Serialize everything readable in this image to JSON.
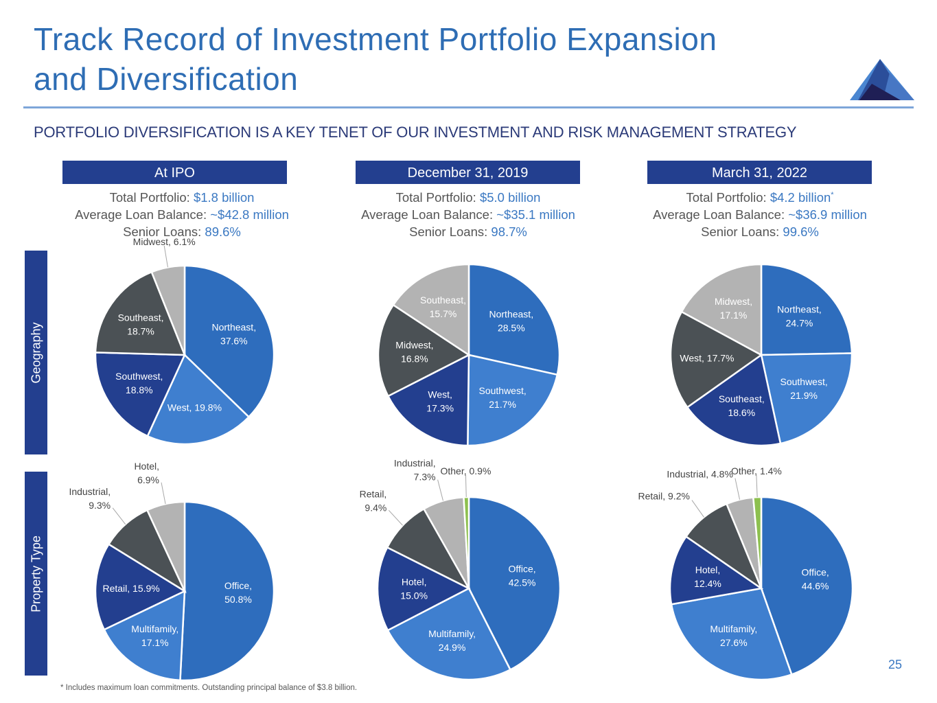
{
  "header": {
    "title_line1": "Track Record of Investment Portfolio Expansion",
    "title_line2": "and Diversification",
    "subtitle": "PORTFOLIO DIVERSIFICATION IS A KEY TENET OF OUR INVESTMENT AND RISK MANAGEMENT STRATEGY",
    "logo_icon": "mountain-logo-icon"
  },
  "columns": [
    {
      "heading": "At IPO",
      "total_label": "Total Portfolio: ",
      "total_value": "$1.8 billion",
      "total_note": "",
      "avg_label": "Average Loan Balance: ",
      "avg_value": "~$42.8 million",
      "senior_label": "Senior Loans: ",
      "senior_value": "89.6%"
    },
    {
      "heading": "December 31, 2019",
      "total_label": "Total Portfolio: ",
      "total_value": "$5.0 billion",
      "total_note": "",
      "avg_label": "Average Loan Balance: ",
      "avg_value": "~$35.1 million",
      "senior_label": "Senior Loans: ",
      "senior_value": "98.7%"
    },
    {
      "heading": "March 31, 2022",
      "total_label": "Total Portfolio: ",
      "total_value": "$4.2 billion",
      "total_note": "*",
      "avg_label": "Average Loan Balance: ",
      "avg_value": "~$36.9 million",
      "senior_label": "Senior Loans: ",
      "senior_value": "99.6%"
    }
  ],
  "rows": {
    "geography": "Geography",
    "property_type": "Property Type"
  },
  "colors": {
    "header_bar": "#233f8f",
    "accent_text": "#3a78c2",
    "title": "#2e6db4",
    "slice_blue": "#2e6dbd",
    "slice_light_blue": "#3f7fcf",
    "slice_navy": "#233f8f",
    "slice_dark_gray": "#4b5155",
    "slice_light_gray": "#b3b3b3",
    "slice_green": "#8dc04f"
  },
  "chart_data": [
    {
      "type": "pie",
      "title": "Geography — At IPO",
      "categories": [
        "Northeast",
        "West",
        "Southwest",
        "Southeast",
        "Midwest"
      ],
      "values": [
        37.6,
        19.8,
        18.8,
        18.7,
        6.1
      ],
      "colors": [
        "#2e6dbd",
        "#3f7fcf",
        "#233f8f",
        "#4b5155",
        "#b3b3b3"
      ],
      "labels": [
        "Northeast,|37.6%",
        "West, 19.8%",
        "Southwest,|18.8%",
        "Southeast,|18.7%",
        "Midwest, 6.1%"
      ],
      "label_outside": [
        false,
        false,
        false,
        false,
        true
      ],
      "unit": "%"
    },
    {
      "type": "pie",
      "title": "Geography — December 31, 2019",
      "categories": [
        "Northeast",
        "Southwest",
        "West",
        "Midwest",
        "Southeast"
      ],
      "values": [
        28.5,
        21.7,
        17.3,
        16.8,
        15.7
      ],
      "colors": [
        "#2e6dbd",
        "#3f7fcf",
        "#233f8f",
        "#4b5155",
        "#b3b3b3"
      ],
      "labels": [
        "Northeast,|28.5%",
        "Southwest,|21.7%",
        "West,|17.3%",
        "Midwest,|16.8%",
        "Southeast,|15.7%"
      ],
      "label_outside": [
        false,
        false,
        false,
        false,
        false
      ],
      "unit": "%"
    },
    {
      "type": "pie",
      "title": "Geography — March 31, 2022",
      "categories": [
        "Northeast",
        "Southwest",
        "Southeast",
        "West",
        "Midwest"
      ],
      "values": [
        24.7,
        21.9,
        18.6,
        17.7,
        17.1
      ],
      "colors": [
        "#2e6dbd",
        "#3f7fcf",
        "#233f8f",
        "#4b5155",
        "#b3b3b3"
      ],
      "labels": [
        "Northeast,|24.7%",
        "Southwest,|21.9%",
        "Southeast,|18.6%",
        "West, 17.7%",
        "Midwest,|17.1%"
      ],
      "label_outside": [
        false,
        false,
        false,
        false,
        false
      ],
      "unit": "%"
    },
    {
      "type": "pie",
      "title": "Property Type — At IPO",
      "categories": [
        "Office",
        "Multifamily",
        "Retail",
        "Industrial",
        "Hotel"
      ],
      "values": [
        50.8,
        17.1,
        15.9,
        9.3,
        6.9
      ],
      "colors": [
        "#2e6dbd",
        "#3f7fcf",
        "#233f8f",
        "#4b5155",
        "#b3b3b3"
      ],
      "labels": [
        "Office,|50.8%",
        "Multifamily,|17.1%",
        "Retail, 15.9%",
        "Industrial,|9.3%",
        "Hotel,|6.9%"
      ],
      "label_outside": [
        false,
        false,
        false,
        true,
        true
      ],
      "unit": "%"
    },
    {
      "type": "pie",
      "title": "Property Type — December 31, 2019",
      "categories": [
        "Office",
        "Multifamily",
        "Hotel",
        "Retail",
        "Industrial",
        "Other"
      ],
      "values": [
        42.5,
        24.9,
        15.0,
        9.4,
        7.3,
        0.9
      ],
      "colors": [
        "#2e6dbd",
        "#3f7fcf",
        "#233f8f",
        "#4b5155",
        "#b3b3b3",
        "#8dc04f"
      ],
      "labels": [
        "Office,|42.5%",
        "Multifamily,|24.9%",
        "Hotel,|15.0%",
        "Retail,|9.4%",
        "Industrial,|7.3%",
        "Other, 0.9%"
      ],
      "label_outside": [
        false,
        false,
        false,
        true,
        true,
        true
      ],
      "unit": "%"
    },
    {
      "type": "pie",
      "title": "Property Type — March 31, 2022",
      "categories": [
        "Office",
        "Multifamily",
        "Hotel",
        "Retail",
        "Industrial",
        "Other"
      ],
      "values": [
        44.6,
        27.6,
        12.4,
        9.2,
        4.8,
        1.4
      ],
      "colors": [
        "#2e6dbd",
        "#3f7fcf",
        "#233f8f",
        "#4b5155",
        "#b3b3b3",
        "#8dc04f"
      ],
      "labels": [
        "Office,|44.6%",
        "Multifamily,|27.6%",
        "Hotel,|12.4%",
        "Retail, 9.2%",
        "Industrial, 4.8%",
        "Other, 1.4%"
      ],
      "label_outside": [
        false,
        false,
        false,
        true,
        true,
        true
      ],
      "unit": "%"
    }
  ],
  "footnote": "* Includes maximum loan commitments. Outstanding principal balance of $3.8 billion.",
  "page_number": "25"
}
